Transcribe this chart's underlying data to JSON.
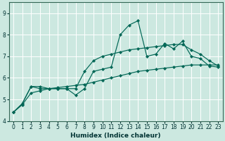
{
  "xlabel": "Humidex (Indice chaleur)",
  "bg_color": "#cce8e0",
  "line_color": "#006655",
  "grid_color": "#ffffff",
  "xlim": [
    -0.5,
    23.5
  ],
  "ylim": [
    4.0,
    9.5
  ],
  "yticks": [
    4,
    5,
    6,
    7,
    8,
    9
  ],
  "xticks": [
    0,
    1,
    2,
    3,
    4,
    5,
    6,
    7,
    8,
    9,
    10,
    11,
    12,
    13,
    14,
    15,
    16,
    17,
    18,
    19,
    20,
    21,
    22,
    23
  ],
  "series": [
    [
      4.4,
      4.8,
      5.6,
      5.6,
      5.5,
      5.5,
      5.5,
      5.2,
      5.5,
      6.3,
      6.4,
      6.5,
      8.0,
      8.45,
      8.65,
      7.0,
      7.1,
      7.6,
      7.35,
      7.7,
      7.0,
      6.9,
      6.55,
      6.5
    ],
    [
      4.4,
      4.8,
      5.6,
      5.5,
      5.5,
      5.5,
      5.5,
      5.5,
      6.3,
      6.8,
      7.0,
      7.1,
      7.2,
      7.3,
      7.35,
      7.4,
      7.45,
      7.5,
      7.55,
      7.55,
      7.3,
      7.1,
      6.8,
      6.55
    ],
    [
      4.4,
      4.75,
      5.3,
      5.4,
      5.5,
      5.55,
      5.6,
      5.65,
      5.7,
      5.8,
      5.9,
      6.0,
      6.1,
      6.2,
      6.3,
      6.35,
      6.4,
      6.45,
      6.5,
      6.55,
      6.6,
      6.6,
      6.6,
      6.6
    ]
  ],
  "tick_fontsize": 5.5,
  "xlabel_fontsize": 6.5,
  "marker_size": 2.2,
  "linewidth": 0.85
}
